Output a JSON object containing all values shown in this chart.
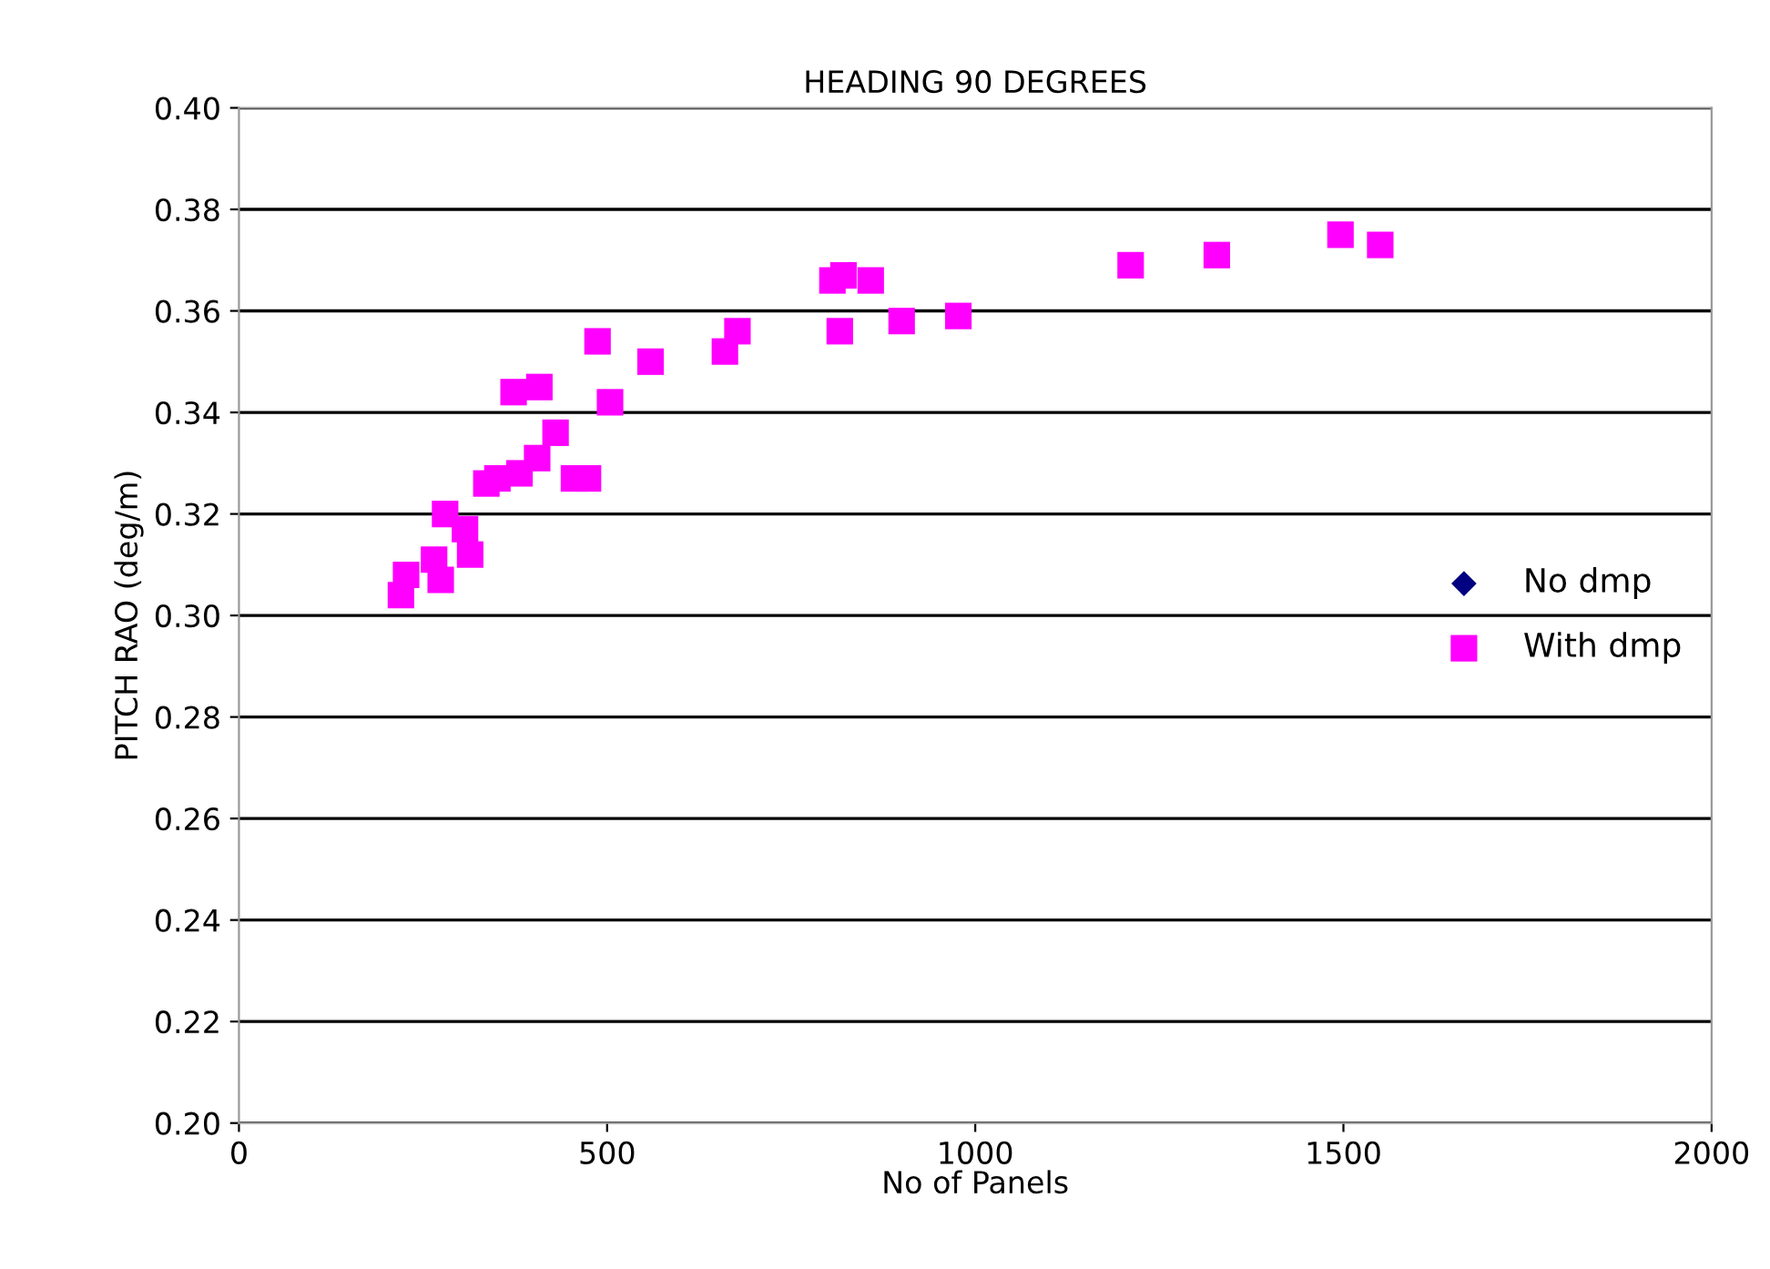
{
  "chart_data": {
    "type": "scatter",
    "title": "HEADING 90 DEGREES",
    "xlabel": "No of Panels",
    "ylabel": "PITCH RAO (deg/m)",
    "xlim": [
      0,
      2000
    ],
    "xticks": [
      0,
      500,
      1000,
      1500,
      2000
    ],
    "ylim": [
      0.2,
      0.4
    ],
    "yticks": [
      {
        "value": 0.2,
        "label": "0.20"
      },
      {
        "value": 0.22,
        "label": "0.22"
      },
      {
        "value": 0.24,
        "label": "0.24"
      },
      {
        "value": 0.26,
        "label": "0.26"
      },
      {
        "value": 0.28,
        "label": "0.28"
      },
      {
        "value": 0.3,
        "label": "0.30"
      },
      {
        "value": 0.32,
        "label": "0.32"
      },
      {
        "value": 0.34,
        "label": "0.34"
      },
      {
        "value": 0.36,
        "label": "0.36"
      },
      {
        "value": 0.38,
        "label": "0.38"
      },
      {
        "value": 0.4,
        "label": "0.40"
      }
    ],
    "grid": "y",
    "legend": "right",
    "series": [
      {
        "name": "No dmp",
        "color": "#000080",
        "marker": "diamond"
      },
      {
        "name": "With dmp",
        "color": "#ff00ff",
        "marker": "square",
        "x": [
          220,
          227,
          265,
          274,
          314,
          307,
          280,
          336,
          351,
          381,
          405,
          430,
          455,
          474,
          373,
          408,
          504,
          487,
          559,
          660,
          677,
          806,
          821,
          858,
          816,
          900,
          977,
          1211,
          1328,
          1496,
          1550
        ],
        "values": [
          0.304,
          0.308,
          0.311,
          0.307,
          0.312,
          0.317,
          0.32,
          0.326,
          0.327,
          0.328,
          0.331,
          0.336,
          0.327,
          0.327,
          0.344,
          0.345,
          0.342,
          0.354,
          0.35,
          0.352,
          0.356,
          0.366,
          0.367,
          0.366,
          0.356,
          0.358,
          0.359,
          0.369,
          0.371,
          0.375,
          0.373
        ]
      }
    ]
  }
}
